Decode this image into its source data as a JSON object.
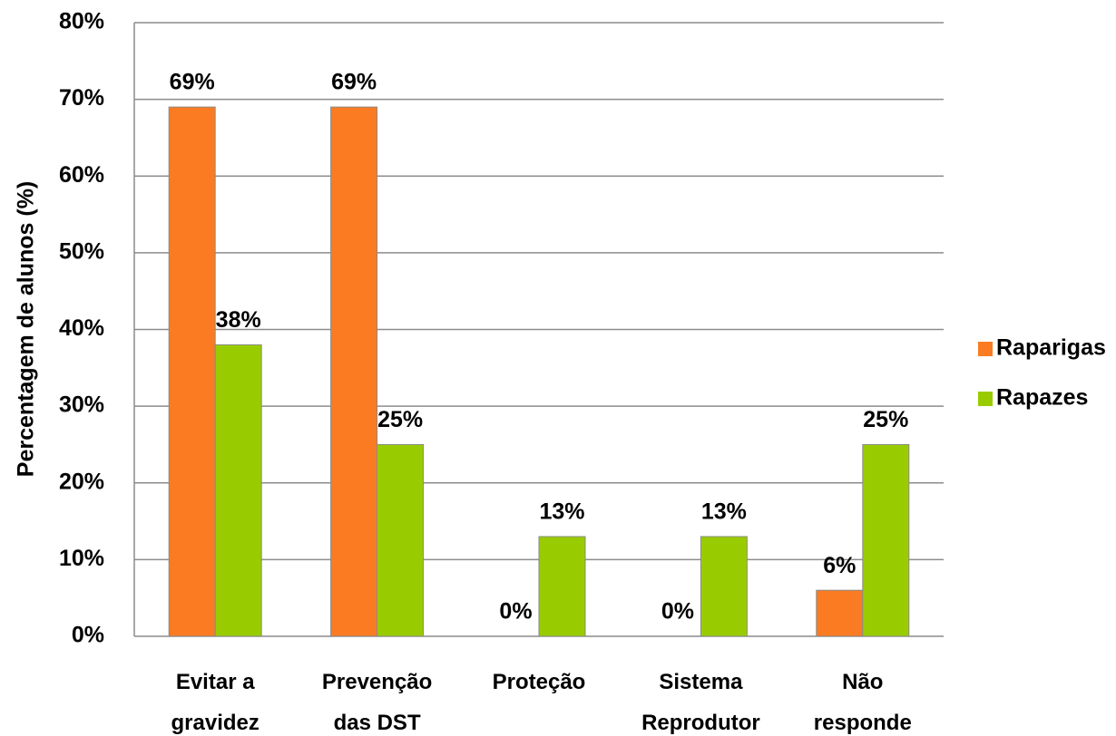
{
  "chart_data": {
    "type": "bar",
    "y_label": "Percentagem de alunos (%)",
    "categories": [
      "Evitar a gravidez",
      "Prevenção das DST",
      "Proteção",
      "Sistema Reprodutor",
      "Não responde"
    ],
    "series": [
      {
        "name": "Raparigas",
        "color": "#fa7b22",
        "values": [
          69,
          69,
          0,
          0,
          6
        ],
        "value_labels": [
          "69%",
          "69%",
          "0%",
          "0%",
          "6%"
        ]
      },
      {
        "name": "Rapazes",
        "color": "#99cc00",
        "values": [
          38,
          25,
          13,
          13,
          25
        ],
        "value_labels": [
          "38%",
          "25%",
          "13%",
          "13%",
          "25%"
        ]
      }
    ],
    "ylim": [
      0,
      80
    ],
    "yticks": [
      {
        "value": 0,
        "label": "0%"
      },
      {
        "value": 10,
        "label": "10%"
      },
      {
        "value": 20,
        "label": "20%"
      },
      {
        "value": 30,
        "label": "30%"
      },
      {
        "value": 40,
        "label": "40%"
      },
      {
        "value": 50,
        "label": "50%"
      },
      {
        "value": 60,
        "label": "60%"
      },
      {
        "value": 70,
        "label": "70%"
      },
      {
        "value": 80,
        "label": "80%"
      }
    ],
    "grid": true,
    "legend": "right"
  }
}
